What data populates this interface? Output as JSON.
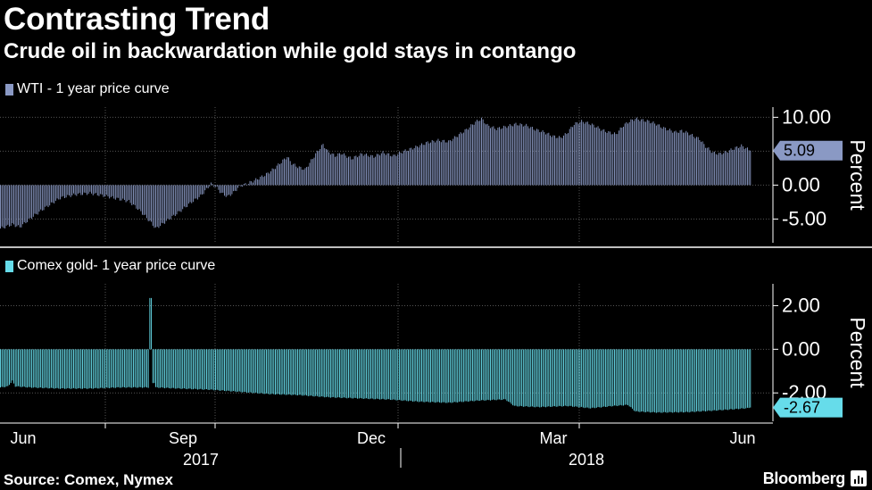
{
  "title": "Contrasting Trend",
  "subtitle": "Crude oil in backwardation while gold stays in contango",
  "source": "Source: Comex, Nymex",
  "brand": "Bloomberg",
  "colors": {
    "wti": "#8a99c4",
    "gold": "#66dcea",
    "grid": "#555555",
    "divider": "#bfbfbf"
  },
  "chart_data": [
    {
      "type": "bar",
      "legend": "WTI - 1 year price curve",
      "ylabel": "Percent",
      "ylim": [
        -8.5,
        11.5
      ],
      "yticks": [
        "10.00",
        "5.00",
        "0.00",
        "-5.00"
      ],
      "ytick_values": [
        10,
        5,
        0,
        -5
      ],
      "last_value_label": "5.09",
      "anchors": [
        [
          0,
          -6.4
        ],
        [
          8,
          -5.8
        ],
        [
          13,
          -6.2
        ],
        [
          18,
          -5.3
        ],
        [
          22,
          -4.6
        ],
        [
          27,
          -3.8
        ],
        [
          33,
          -2.9
        ],
        [
          40,
          -1.9
        ],
        [
          50,
          -1.4
        ],
        [
          60,
          -1.2
        ],
        [
          70,
          -1.6
        ],
        [
          78,
          -2.0
        ],
        [
          86,
          -2.4
        ],
        [
          92,
          -3.5
        ],
        [
          97,
          -4.6
        ],
        [
          101,
          -5.6
        ],
        [
          104,
          -6.4
        ],
        [
          108,
          -5.8
        ],
        [
          113,
          -5.0
        ],
        [
          120,
          -3.9
        ],
        [
          128,
          -2.5
        ],
        [
          134,
          -1.6
        ],
        [
          138,
          -0.6
        ],
        [
          141,
          0.2
        ],
        [
          144,
          -0.2
        ],
        [
          148,
          -1.2
        ],
        [
          152,
          -1.7
        ],
        [
          156,
          -1.1
        ],
        [
          160,
          -0.2
        ],
        [
          166,
          0.3
        ],
        [
          172,
          0.9
        ],
        [
          178,
          1.6
        ],
        [
          183,
          2.4
        ],
        [
          188,
          3.4
        ],
        [
          192,
          4.2
        ],
        [
          195,
          3.2
        ],
        [
          199,
          2.7
        ],
        [
          204,
          2.3
        ],
        [
          208,
          3.6
        ],
        [
          212,
          4.9
        ],
        [
          216,
          6.0
        ],
        [
          219,
          5.0
        ],
        [
          224,
          4.3
        ],
        [
          228,
          4.7
        ],
        [
          235,
          3.9
        ],
        [
          242,
          4.6
        ],
        [
          250,
          4.2
        ],
        [
          256,
          4.8
        ],
        [
          263,
          4.3
        ],
        [
          270,
          5.0
        ],
        [
          278,
          5.6
        ],
        [
          286,
          6.3
        ],
        [
          293,
          6.6
        ],
        [
          300,
          6.4
        ],
        [
          308,
          7.6
        ],
        [
          312,
          8.2
        ],
        [
          318,
          9.3
        ],
        [
          322,
          9.8
        ],
        [
          326,
          8.8
        ],
        [
          332,
          8.3
        ],
        [
          338,
          8.6
        ],
        [
          345,
          9.0
        ],
        [
          352,
          8.8
        ],
        [
          358,
          8.2
        ],
        [
          364,
          7.8
        ],
        [
          370,
          7.2
        ],
        [
          375,
          7.0
        ],
        [
          379,
          7.6
        ],
        [
          384,
          9.0
        ],
        [
          389,
          9.4
        ],
        [
          394,
          9.1
        ],
        [
          398,
          8.7
        ],
        [
          403,
          8.1
        ],
        [
          407,
          7.8
        ],
        [
          412,
          7.5
        ],
        [
          417,
          8.8
        ],
        [
          421,
          9.4
        ],
        [
          425,
          9.8
        ],
        [
          429,
          9.6
        ],
        [
          434,
          9.4
        ],
        [
          439,
          9.0
        ],
        [
          443,
          8.5
        ],
        [
          448,
          8.1
        ],
        [
          452,
          7.8
        ],
        [
          456,
          8.0
        ],
        [
          460,
          7.7
        ],
        [
          464,
          7.2
        ],
        [
          468,
          6.8
        ],
        [
          472,
          5.7
        ],
        [
          477,
          4.8
        ],
        [
          481,
          4.6
        ],
        [
          486,
          4.9
        ],
        [
          491,
          5.4
        ],
        [
          496,
          5.8
        ],
        [
          502,
          5.09
        ]
      ]
    },
    {
      "type": "bar",
      "legend": "Comex gold- 1 year price curve",
      "ylabel": "Percent",
      "ylim": [
        -3.3,
        3.0
      ],
      "yticks": [
        "2.00",
        "0.00",
        "-2.00"
      ],
      "ytick_values": [
        2,
        0,
        -2
      ],
      "last_value_label": "-2.67",
      "spikes": [
        [
          100,
          2.35
        ],
        [
          101,
          2.35
        ],
        [
          102,
          -1.55
        ],
        [
          103,
          -1.55
        ]
      ],
      "anchors": [
        [
          0,
          -1.75
        ],
        [
          5,
          -1.7
        ],
        [
          8,
          -1.45
        ],
        [
          10,
          -1.7
        ],
        [
          20,
          -1.75
        ],
        [
          40,
          -1.8
        ],
        [
          60,
          -1.8
        ],
        [
          80,
          -1.75
        ],
        [
          104,
          -1.75
        ],
        [
          120,
          -1.8
        ],
        [
          140,
          -1.85
        ],
        [
          160,
          -1.95
        ],
        [
          180,
          -2.05
        ],
        [
          200,
          -2.1
        ],
        [
          220,
          -2.2
        ],
        [
          240,
          -2.25
        ],
        [
          260,
          -2.3
        ],
        [
          280,
          -2.4
        ],
        [
          300,
          -2.45
        ],
        [
          320,
          -2.35
        ],
        [
          338,
          -2.3
        ],
        [
          344,
          -2.6
        ],
        [
          360,
          -2.65
        ],
        [
          380,
          -2.6
        ],
        [
          395,
          -2.7
        ],
        [
          410,
          -2.6
        ],
        [
          420,
          -2.55
        ],
        [
          425,
          -2.85
        ],
        [
          440,
          -2.9
        ],
        [
          460,
          -2.88
        ],
        [
          480,
          -2.8
        ],
        [
          500,
          -2.7
        ],
        [
          502,
          -2.67
        ]
      ]
    }
  ],
  "x_axis": {
    "months": [
      "Jun",
      "Sep",
      "Dec",
      "Mar",
      "Jun"
    ],
    "years": [
      "2017",
      "2018"
    ]
  }
}
